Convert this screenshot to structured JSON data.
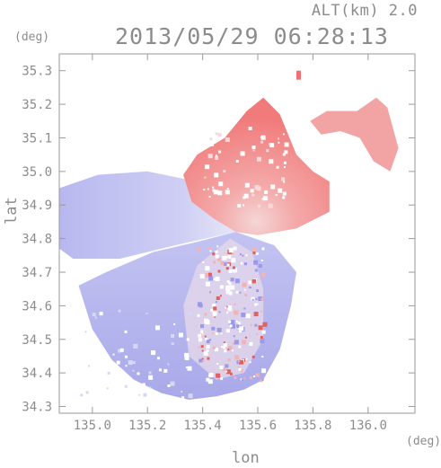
{
  "header": {
    "altitude_label": "ALT(km) 2.0",
    "timestamp": "2013/05/29 06:28:13"
  },
  "chart_data": {
    "type": "heatmap",
    "title": "2013/05/29 06:28:13",
    "subtitle": "ALT(km) 2.0",
    "xlabel": "lon",
    "ylabel": "lat",
    "x_unit": "(deg)",
    "y_unit": "(deg)",
    "xlim": [
      134.88,
      136.17
    ],
    "ylim": [
      34.28,
      35.35
    ],
    "x_ticks": [
      135.0,
      135.2,
      135.4,
      135.6,
      135.8,
      136.0
    ],
    "x_tick_labels": [
      "135.0",
      "135.2",
      "135.4",
      "135.6",
      "135.8",
      "136.0"
    ],
    "y_ticks": [
      34.3,
      34.4,
      34.5,
      34.6,
      34.7,
      34.8,
      34.9,
      35.0,
      35.1,
      35.2,
      35.3
    ],
    "y_tick_labels": [
      "34.3",
      "34.4",
      "34.5",
      "34.6",
      "34.7",
      "34.8",
      "34.9",
      "35.0",
      "35.1",
      "35.2",
      "35.3"
    ],
    "grid": false,
    "radar_center": {
      "lon": 135.52,
      "lat": 34.82
    },
    "color_positive": "#f07878",
    "color_negative": "#8c8ce6",
    "regions": [
      {
        "sign": "negative",
        "intensity": 0.45,
        "lon_range": [
          134.88,
          135.52
        ],
        "lat_range": [
          34.72,
          35.02
        ],
        "desc_id": "west"
      },
      {
        "sign": "negative",
        "intensity": 0.55,
        "lon_range": [
          135.0,
          135.75
        ],
        "lat_range": [
          34.33,
          34.8
        ],
        "desc_id": "south"
      },
      {
        "sign": "positive",
        "intensity": 0.55,
        "lon_range": [
          135.33,
          135.86
        ],
        "lat_range": [
          34.8,
          35.23
        ],
        "desc_id": "north"
      },
      {
        "sign": "positive",
        "intensity": 0.6,
        "lon_range": [
          135.77,
          136.12
        ],
        "lat_range": [
          34.98,
          35.24
        ],
        "desc_id": "northeast"
      }
    ]
  }
}
